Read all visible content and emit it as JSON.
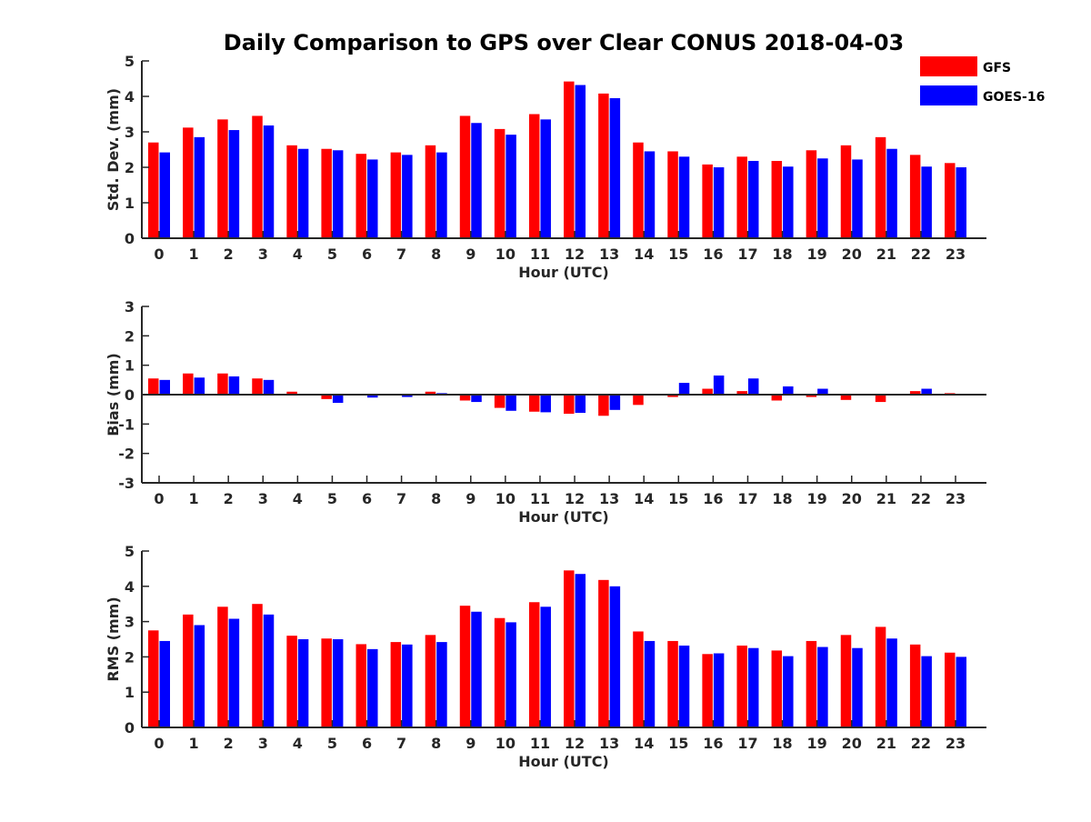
{
  "title": "Daily Comparison to GPS over Clear CONUS 2018-04-03",
  "legend": [
    {
      "name": "GFS",
      "color": "#ff0000"
    },
    {
      "name": "GOES-16",
      "color": "#0000ff"
    }
  ],
  "chart_data": [
    {
      "type": "bar",
      "title": "Daily Comparison to GPS over Clear CONUS 2018-04-03",
      "xlabel": "Hour (UTC)",
      "ylabel": "Std. Dev. (mm)",
      "ylim": [
        0,
        5
      ],
      "yticks": [
        "0",
        "1",
        "2",
        "3",
        "4",
        "5"
      ],
      "categories": [
        "0",
        "1",
        "2",
        "3",
        "4",
        "5",
        "6",
        "7",
        "8",
        "9",
        "10",
        "11",
        "12",
        "13",
        "14",
        "15",
        "16",
        "17",
        "18",
        "19",
        "20",
        "21",
        "22",
        "23"
      ],
      "series": [
        {
          "name": "GFS",
          "color": "#ff0000",
          "values": [
            2.7,
            3.12,
            3.35,
            3.45,
            2.62,
            2.52,
            2.38,
            2.42,
            2.62,
            3.45,
            3.08,
            3.5,
            4.42,
            4.08,
            2.7,
            2.45,
            2.08,
            2.3,
            2.18,
            2.48,
            2.62,
            2.85,
            2.35,
            2.12
          ]
        },
        {
          "name": "GOES-16",
          "color": "#0000ff",
          "values": [
            2.42,
            2.85,
            3.05,
            3.18,
            2.52,
            2.48,
            2.22,
            2.35,
            2.42,
            3.25,
            2.92,
            3.35,
            4.32,
            3.95,
            2.45,
            2.3,
            2.0,
            2.18,
            2.02,
            2.25,
            2.22,
            2.52,
            2.02,
            2.0
          ]
        }
      ]
    },
    {
      "type": "bar",
      "xlabel": "Hour (UTC)",
      "ylabel": "Bias (mm)",
      "ylim": [
        -3,
        3
      ],
      "yticks": [
        "-3",
        "-2",
        "-1",
        "0",
        "1",
        "2",
        "3"
      ],
      "categories": [
        "0",
        "1",
        "2",
        "3",
        "4",
        "5",
        "6",
        "7",
        "8",
        "9",
        "10",
        "11",
        "12",
        "13",
        "14",
        "15",
        "16",
        "17",
        "18",
        "19",
        "20",
        "21",
        "22",
        "23"
      ],
      "series": [
        {
          "name": "GFS",
          "color": "#ff0000",
          "values": [
            0.55,
            0.72,
            0.72,
            0.55,
            0.1,
            -0.15,
            0.03,
            -0.02,
            0.1,
            -0.2,
            -0.45,
            -0.58,
            -0.65,
            -0.72,
            -0.35,
            -0.08,
            0.2,
            0.12,
            -0.2,
            -0.08,
            -0.18,
            -0.25,
            0.12,
            0.05
          ]
        },
        {
          "name": "GOES-16",
          "color": "#0000ff",
          "values": [
            0.5,
            0.58,
            0.62,
            0.5,
            0.0,
            -0.28,
            -0.1,
            -0.08,
            0.05,
            -0.25,
            -0.55,
            -0.6,
            -0.62,
            -0.52,
            0.0,
            0.4,
            0.65,
            0.55,
            0.28,
            0.2,
            0.03,
            -0.02,
            0.2,
            0.03
          ]
        }
      ]
    },
    {
      "type": "bar",
      "xlabel": "Hour (UTC)",
      "ylabel": "RMS (mm)",
      "ylim": [
        0,
        5
      ],
      "yticks": [
        "0",
        "1",
        "2",
        "3",
        "4",
        "5"
      ],
      "categories": [
        "0",
        "1",
        "2",
        "3",
        "4",
        "5",
        "6",
        "7",
        "8",
        "9",
        "10",
        "11",
        "12",
        "13",
        "14",
        "15",
        "16",
        "17",
        "18",
        "19",
        "20",
        "21",
        "22",
        "23"
      ],
      "series": [
        {
          "name": "GFS",
          "color": "#ff0000",
          "values": [
            2.75,
            3.2,
            3.42,
            3.5,
            2.6,
            2.52,
            2.36,
            2.42,
            2.62,
            3.45,
            3.1,
            3.55,
            4.45,
            4.18,
            2.72,
            2.45,
            2.08,
            2.32,
            2.18,
            2.45,
            2.62,
            2.85,
            2.35,
            2.12
          ]
        },
        {
          "name": "GOES-16",
          "color": "#0000ff",
          "values": [
            2.45,
            2.9,
            3.08,
            3.2,
            2.5,
            2.5,
            2.22,
            2.35,
            2.42,
            3.28,
            2.98,
            3.42,
            4.35,
            4.0,
            2.45,
            2.32,
            2.1,
            2.25,
            2.02,
            2.28,
            2.25,
            2.52,
            2.02,
            2.0
          ]
        }
      ]
    }
  ]
}
